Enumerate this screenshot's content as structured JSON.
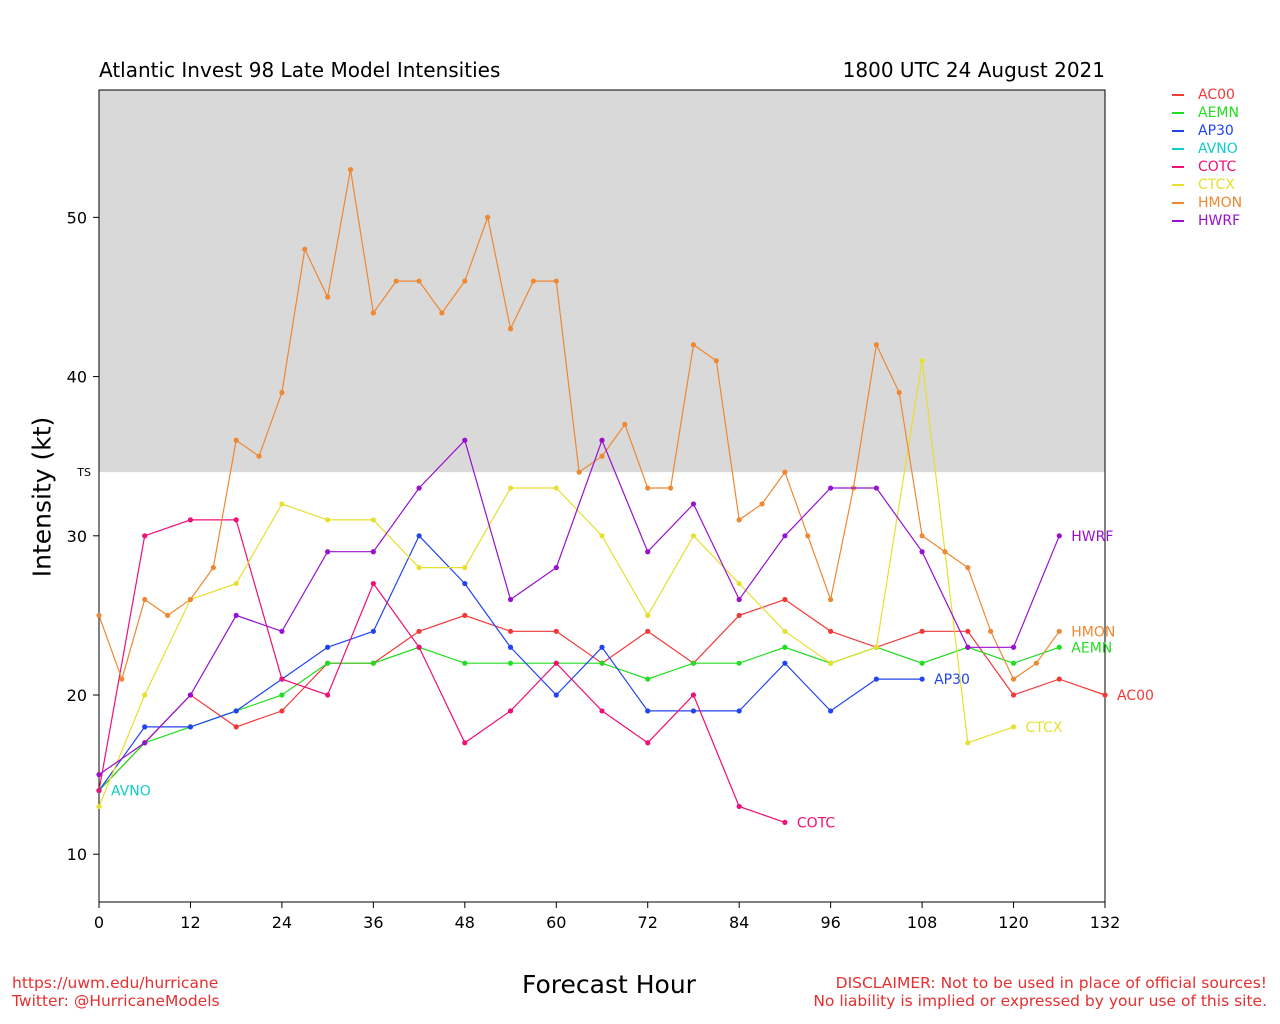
{
  "header": {
    "title": "Atlantic Invest 98 Late Model Intensities",
    "datetime": "1800 UTC 24 August 2021"
  },
  "footer": {
    "left_line1": "https://uwm.edu/hurricane",
    "left_line2": "Twitter: @HurricaneModels",
    "right_line1": "DISCLAIMER: Not to be used in place of official sources!",
    "right_line2": "No liability is implied or expressed by your use of this site."
  },
  "chart_data": {
    "type": "line",
    "title": "Atlantic Invest 98 Late Model Intensities",
    "xlabel": "Forecast Hour",
    "ylabel": "Intensity (kt)",
    "xlim": [
      0,
      132
    ],
    "ylim": [
      7,
      58
    ],
    "xticks": [
      0,
      12,
      24,
      36,
      48,
      60,
      72,
      84,
      96,
      108,
      120,
      132
    ],
    "yticks": [
      10,
      20,
      30,
      40,
      50
    ],
    "threshold": {
      "label": "TS",
      "value": 34,
      "shade_color": "#d9d9d9"
    },
    "legend_position": "top-right outside",
    "series": [
      {
        "name": "AC00",
        "color": "#f03a3a",
        "x": [
          0,
          6,
          12,
          18,
          24,
          30,
          36,
          42,
          48,
          54,
          60,
          66,
          72,
          78,
          84,
          90,
          96,
          102,
          108,
          114,
          120,
          126,
          132
        ],
        "y": [
          14,
          17,
          20,
          18,
          19,
          22,
          22,
          24,
          25,
          24,
          24,
          22,
          24,
          22,
          25,
          26,
          24,
          23,
          24,
          24,
          20,
          21,
          20
        ]
      },
      {
        "name": "AEMN",
        "color": "#22dd22",
        "x": [
          0,
          6,
          12,
          18,
          24,
          30,
          36,
          42,
          48,
          54,
          60,
          66,
          72,
          78,
          84,
          90,
          96,
          102,
          108,
          114,
          120,
          126
        ],
        "y": [
          14,
          17,
          18,
          19,
          20,
          22,
          22,
          23,
          22,
          22,
          22,
          22,
          21,
          22,
          22,
          23,
          22,
          23,
          22,
          23,
          22,
          23
        ]
      },
      {
        "name": "AP30",
        "color": "#2244ee",
        "x": [
          0,
          6,
          12,
          18,
          24,
          30,
          36,
          42,
          48,
          54,
          60,
          66,
          72,
          78,
          84,
          90,
          96,
          102,
          108
        ],
        "y": [
          14,
          18,
          18,
          19,
          21,
          23,
          24,
          30,
          27,
          23,
          20,
          23,
          19,
          19,
          19,
          22,
          19,
          21,
          21
        ]
      },
      {
        "name": "AVNO",
        "color": "#11cccc",
        "x": [
          0
        ],
        "y": [
          14
        ]
      },
      {
        "name": "COTC",
        "color": "#ee1177",
        "x": [
          0,
          6,
          12,
          18,
          24,
          30,
          36,
          42,
          48,
          54,
          60,
          66,
          72,
          78,
          84,
          90
        ],
        "y": [
          14,
          30,
          31,
          31,
          21,
          20,
          27,
          23,
          17,
          19,
          22,
          19,
          17,
          20,
          13,
          12
        ]
      },
      {
        "name": "CTCX",
        "color": "#e6e030",
        "x": [
          0,
          6,
          12,
          18,
          24,
          30,
          36,
          42,
          48,
          54,
          60,
          66,
          72,
          78,
          84,
          90,
          96,
          102,
          108,
          114,
          120
        ],
        "y": [
          13,
          20,
          26,
          27,
          32,
          31,
          31,
          28,
          28,
          33,
          33,
          30,
          25,
          30,
          27,
          24,
          22,
          23,
          41,
          17,
          18
        ]
      },
      {
        "name": "HMON",
        "color": "#ee8833",
        "x": [
          0,
          3,
          6,
          9,
          12,
          15,
          18,
          21,
          24,
          27,
          30,
          33,
          36,
          39,
          42,
          45,
          48,
          51,
          54,
          57,
          60,
          63,
          66,
          69,
          72,
          75,
          78,
          81,
          84,
          87,
          90,
          93,
          96,
          99,
          102,
          105,
          108,
          111,
          114,
          117,
          120,
          123,
          126
        ],
        "y": [
          25,
          21,
          26,
          25,
          26,
          28,
          36,
          35,
          39,
          48,
          45,
          53,
          44,
          46,
          46,
          44,
          46,
          50,
          43,
          46,
          46,
          34,
          35,
          37,
          33,
          33,
          42,
          41,
          31,
          32,
          34,
          30,
          26,
          33,
          42,
          39,
          30,
          29,
          28,
          24,
          21,
          22,
          24
        ]
      },
      {
        "name": "HWRF",
        "color": "#9911cc",
        "x": [
          0,
          6,
          12,
          18,
          24,
          30,
          36,
          42,
          48,
          54,
          60,
          66,
          72,
          78,
          84,
          90,
          96,
          102,
          108,
          114,
          120,
          126
        ],
        "y": [
          15,
          17,
          20,
          25,
          24,
          29,
          29,
          33,
          36,
          26,
          28,
          36,
          29,
          32,
          26,
          30,
          33,
          33,
          29,
          23,
          23,
          30
        ]
      }
    ],
    "end_labels": [
      "AC00",
      "AEMN",
      "AP30",
      "AVNO",
      "COTC",
      "CTCX",
      "HMON",
      "HWRF"
    ]
  }
}
